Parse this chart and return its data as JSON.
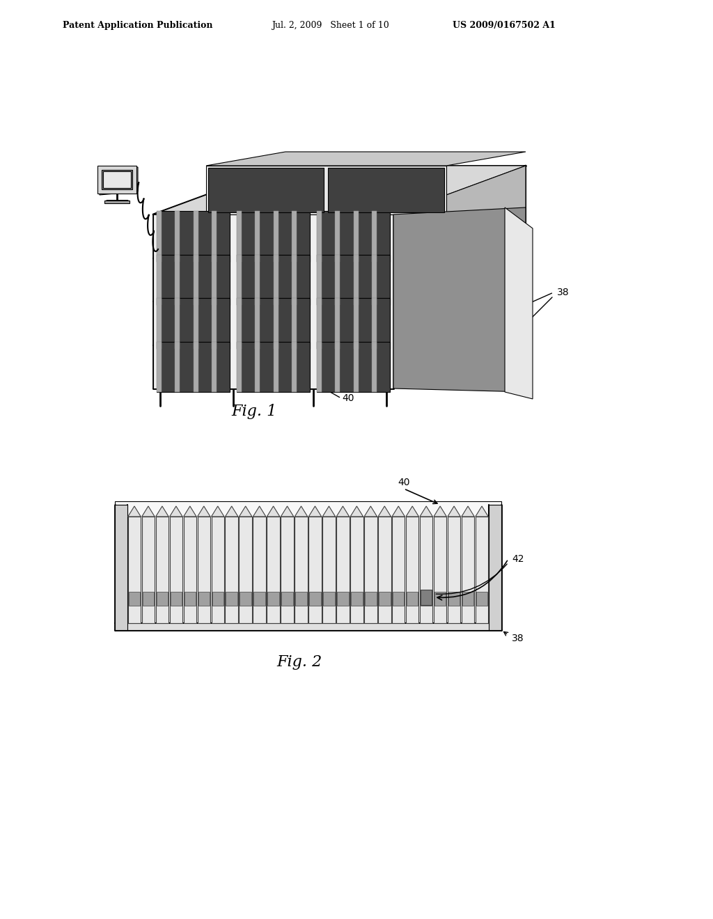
{
  "background_color": "#ffffff",
  "header_left": "Patent Application Publication",
  "header_mid": "Jul. 2, 2009   Sheet 1 of 10",
  "header_right": "US 2009/0167502 A1",
  "fig1_label": "Fig. 1",
  "fig2_label": "Fig. 2",
  "label_38": "38",
  "label_40_fig1": "40",
  "label_40_fig2": "40",
  "label_42": "42",
  "line_color": "#000000",
  "shelf_color": "#000000",
  "fill_light": "#e8e8e8",
  "fill_medium": "#c0c0c0",
  "fill_dark": "#606060"
}
